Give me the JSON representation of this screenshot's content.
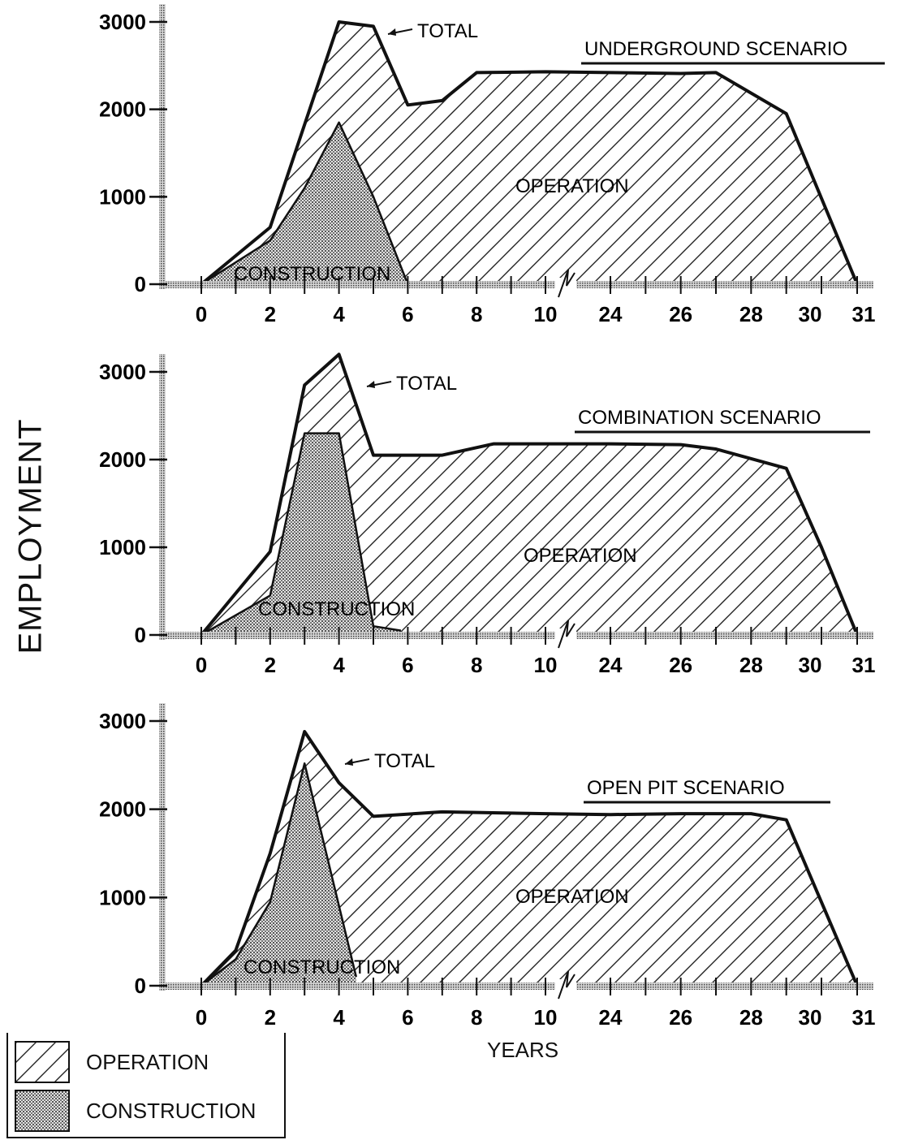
{
  "ylabel": "EMPLOYMENT",
  "xlabel": "YEARS",
  "legend": [
    {
      "label": "OPERATION",
      "fill": "hatch"
    },
    {
      "label": "CONSTRUCTION",
      "fill": "dots"
    }
  ],
  "chart_data": [
    {
      "type": "area",
      "title": "UNDERGROUND SCENARIO",
      "ylim": [
        0,
        3000
      ],
      "yticks": [
        0,
        1000,
        2000,
        3000
      ],
      "xticks": [
        "0",
        "2",
        "4",
        "6",
        "8",
        "10",
        "24",
        "26",
        "28",
        "30",
        "31"
      ],
      "axis_break": "between 10 and 24",
      "region_labels": [
        "OPERATION",
        "CONSTRUCTION"
      ],
      "total_label": "TOTAL",
      "series": [
        {
          "name": "TOTAL",
          "x": [
            0,
            2,
            4,
            5,
            6,
            7,
            8,
            10,
            24,
            26,
            27,
            29,
            31
          ],
          "values": [
            0,
            650,
            3000,
            2950,
            2050,
            2100,
            2420,
            2430,
            2420,
            2410,
            2420,
            1950,
            0
          ]
        },
        {
          "name": "CONSTRUCTION",
          "x": [
            0,
            2,
            3,
            4,
            5,
            6
          ],
          "values": [
            0,
            500,
            1100,
            1850,
            1000,
            0
          ]
        }
      ]
    },
    {
      "type": "area",
      "title": "COMBINATION SCENARIO",
      "ylim": [
        0,
        3000
      ],
      "yticks": [
        0,
        1000,
        2000,
        3000
      ],
      "xticks": [
        "0",
        "2",
        "4",
        "6",
        "8",
        "10",
        "24",
        "26",
        "28",
        "30",
        "31"
      ],
      "axis_break": "between 10 and 24",
      "region_labels": [
        "OPERATION",
        "CONSTRUCTION"
      ],
      "total_label": "TOTAL",
      "series": [
        {
          "name": "TOTAL",
          "x": [
            0,
            2,
            3,
            4,
            5,
            7,
            8.5,
            10,
            24,
            26,
            27,
            29,
            30,
            31
          ],
          "values": [
            0,
            950,
            2850,
            3200,
            2050,
            2050,
            2180,
            2180,
            2180,
            2170,
            2120,
            1900,
            1000,
            0
          ]
        },
        {
          "name": "CONSTRUCTION",
          "x": [
            0,
            2,
            3,
            4,
            5,
            5.8
          ],
          "values": [
            0,
            450,
            2300,
            2300,
            100,
            50
          ]
        }
      ]
    },
    {
      "type": "area",
      "title": "OPEN PIT SCENARIO",
      "ylim": [
        0,
        3000
      ],
      "yticks": [
        0,
        1000,
        2000,
        3000
      ],
      "xticks": [
        "0",
        "2",
        "4",
        "6",
        "8",
        "10",
        "24",
        "26",
        "28",
        "30",
        "31"
      ],
      "axis_break": "between 10 and 24",
      "region_labels": [
        "OPERATION",
        "CONSTRUCTION"
      ],
      "total_label": "TOTAL",
      "series": [
        {
          "name": "TOTAL",
          "x": [
            0,
            1,
            2,
            3,
            4,
            5,
            7,
            10,
            24,
            26,
            28,
            29,
            31
          ],
          "values": [
            0,
            400,
            1500,
            2880,
            2300,
            1920,
            1970,
            1950,
            1940,
            1950,
            1950,
            1880,
            0
          ]
        },
        {
          "name": "CONSTRUCTION",
          "x": [
            0,
            1,
            2,
            3,
            4.5
          ],
          "values": [
            0,
            300,
            950,
            2520,
            100
          ]
        }
      ]
    }
  ]
}
